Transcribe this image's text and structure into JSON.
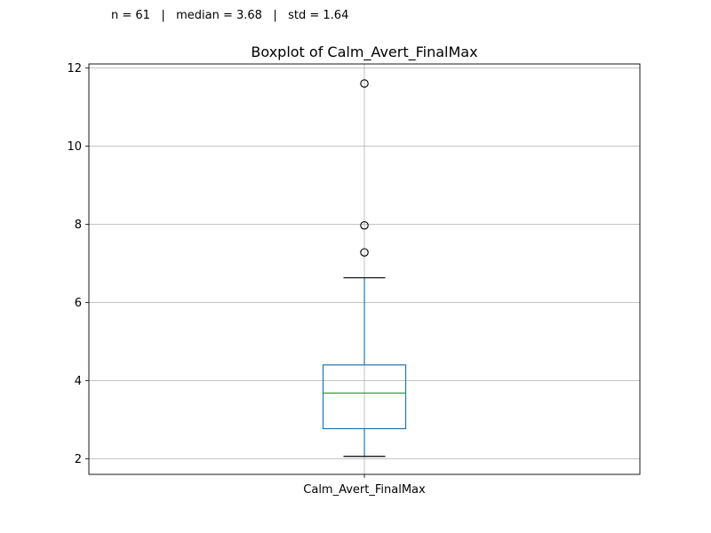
{
  "stats_text": "n = 61   |   median = 3.68   |   std = 1.64",
  "chart_data": {
    "type": "box",
    "title": "Boxplot of Calm_Avert_FinalMax",
    "xlabel": "",
    "ylabel": "",
    "categories": [
      "Calm_Avert_FinalMax"
    ],
    "ylim": [
      1.6,
      12.1
    ],
    "yticks": [
      2,
      4,
      6,
      8,
      10,
      12
    ],
    "grid": true,
    "boxes": [
      {
        "category": "Calm_Avert_FinalMax",
        "whisker_low": 2.06,
        "q1": 2.77,
        "median": 3.68,
        "q3": 4.4,
        "whisker_high": 6.63,
        "outliers": [
          7.28,
          7.97,
          11.6
        ]
      }
    ],
    "colors": {
      "box": "#1f77b4",
      "median": "#2ca02c",
      "whisker_cap": "#000000",
      "grid": "#b0b0b0",
      "outlier_edge": "#000000"
    }
  }
}
